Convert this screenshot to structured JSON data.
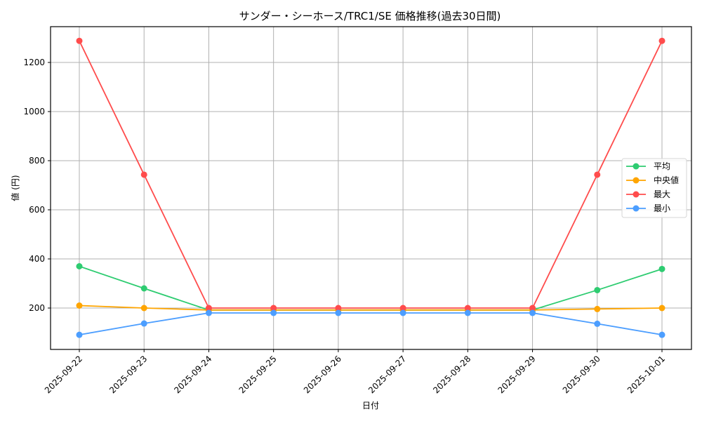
{
  "chart_data": {
    "type": "line",
    "title": "サンダー・シーホース/TRC1/SE 価格推移(過去30日間)",
    "xlabel": "日付",
    "ylabel": "値 (円)",
    "categories": [
      "2025-09-22",
      "2025-09-23",
      "2025-09-24",
      "2025-09-25",
      "2025-09-26",
      "2025-09-27",
      "2025-09-28",
      "2025-09-29",
      "2025-09-30",
      "2025-10-01"
    ],
    "yticks": [
      200,
      400,
      600,
      800,
      1000,
      1200
    ],
    "ylim": [
      30,
      1340
    ],
    "grid": true,
    "legend_position": "center right",
    "series": [
      {
        "name": "平均",
        "color": "#2ecc71",
        "values": [
          370,
          280,
          192,
          192,
          192,
          192,
          192,
          192,
          273,
          359
        ]
      },
      {
        "name": "中央値",
        "color": "#ffa500",
        "values": [
          210,
          200,
          192,
          192,
          192,
          192,
          192,
          192,
          196,
          200
        ]
      },
      {
        "name": "最大",
        "color": "#ff4c4c",
        "values": [
          1288,
          743,
          200,
          200,
          200,
          200,
          200,
          200,
          743,
          1288
        ]
      },
      {
        "name": "最小",
        "color": "#4c9eff",
        "values": [
          91,
          137,
          180,
          180,
          180,
          180,
          180,
          180,
          136,
          91
        ]
      }
    ]
  }
}
